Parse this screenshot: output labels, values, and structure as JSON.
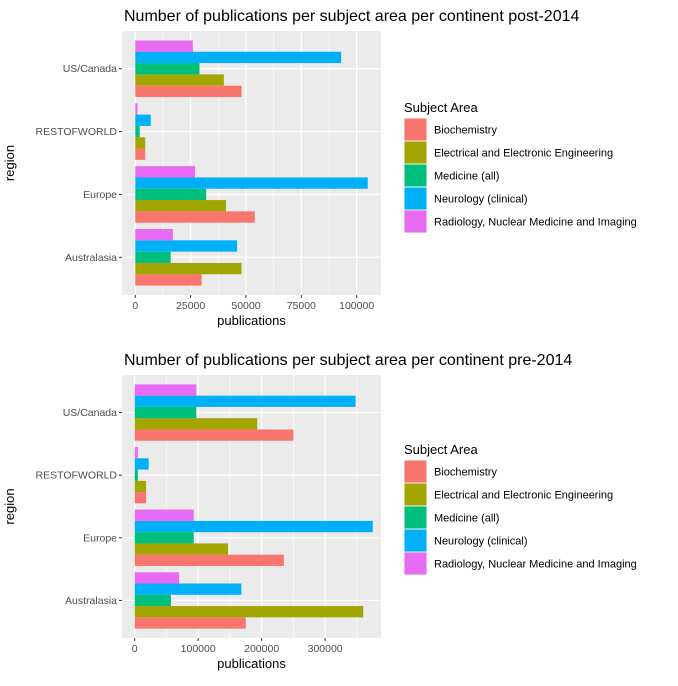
{
  "chart_data": [
    {
      "type": "bar",
      "orientation": "horizontal",
      "title": "Number of publications per subject area per continent post-2014",
      "xlabel": "publications",
      "ylabel": "region",
      "xlim": [
        -6000,
        111000
      ],
      "xticks": [
        0,
        25000,
        50000,
        75000,
        100000
      ],
      "xtick_labels": [
        "0",
        "25000",
        "50000",
        "75000",
        "100000"
      ],
      "categories": [
        "Australasia",
        "Europe",
        "RESTOFWORLD",
        "US/Canada"
      ],
      "series": [
        {
          "name": "Biochemistry",
          "color": "#F8766D",
          "values": [
            30000,
            54000,
            4500,
            48000
          ]
        },
        {
          "name": "Electrical and Electronic Engineering",
          "color": "#A3A500",
          "values": [
            48000,
            41000,
            4500,
            40000
          ]
        },
        {
          "name": "Medicine (all)",
          "color": "#00BF7D",
          "values": [
            16000,
            32000,
            2000,
            29000
          ]
        },
        {
          "name": "Neurology (clinical)",
          "color": "#00B0F6",
          "values": [
            46000,
            105000,
            7000,
            93000
          ]
        },
        {
          "name": "Radiology, Nuclear Medicine and Imaging",
          "color": "#E76BF3",
          "values": [
            17000,
            27000,
            1000,
            26000
          ]
        }
      ],
      "legend_title": "Subject Area",
      "legend_position": "right",
      "grid": true
    },
    {
      "type": "bar",
      "orientation": "horizontal",
      "title": "Number of publications per subject area per continent pre-2014",
      "xlabel": "publications",
      "ylabel": "region",
      "xlim": [
        -20000,
        388000
      ],
      "xticks": [
        0,
        100000,
        200000,
        300000
      ],
      "xtick_labels": [
        "0",
        "100000",
        "200000",
        "300000"
      ],
      "categories": [
        "Australasia",
        "Europe",
        "RESTOFWORLD",
        "US/Canada"
      ],
      "series": [
        {
          "name": "Biochemistry",
          "color": "#F8766D",
          "values": [
            175000,
            235000,
            18000,
            250000
          ]
        },
        {
          "name": "Electrical and Electronic Engineering",
          "color": "#A3A500",
          "values": [
            360000,
            147000,
            18000,
            193000
          ]
        },
        {
          "name": "Medicine (all)",
          "color": "#00BF7D",
          "values": [
            57000,
            93000,
            5000,
            97000
          ]
        },
        {
          "name": "Neurology (clinical)",
          "color": "#00B0F6",
          "values": [
            168000,
            375000,
            22000,
            348000
          ]
        },
        {
          "name": "Radiology, Nuclear Medicine and Imaging",
          "color": "#E76BF3",
          "values": [
            70000,
            93000,
            5000,
            97000
          ]
        }
      ],
      "legend_title": "Subject Area",
      "legend_position": "right",
      "grid": true
    }
  ]
}
